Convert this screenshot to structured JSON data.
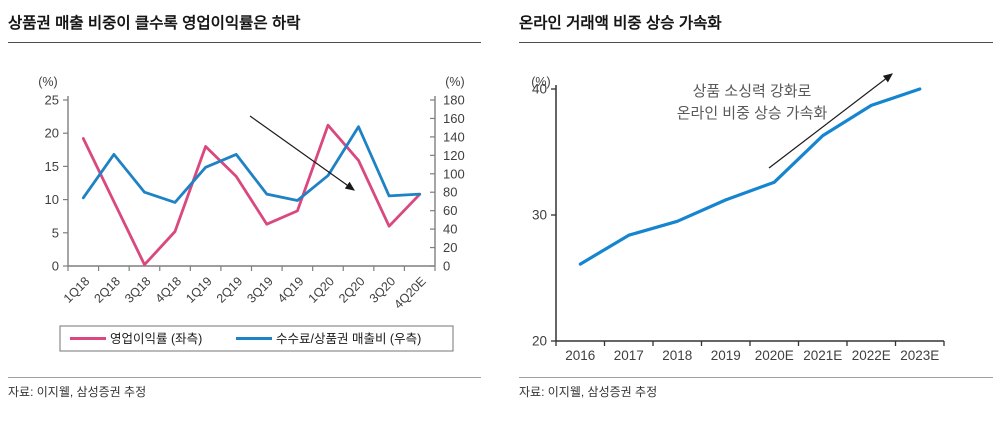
{
  "page": {
    "background": "#ffffff"
  },
  "chart_data": [
    {
      "type": "line",
      "title": "상품권 매출 비중이 클수록 영업이익률은 하락",
      "source": "자료: 이지웰, 삼성증권 추정",
      "ylabel_left": "(%)",
      "ylabel_right": "(%)",
      "categories": [
        "1Q18",
        "2Q18",
        "3Q18",
        "4Q18",
        "1Q19",
        "2Q19",
        "3Q19",
        "4Q19",
        "1Q20",
        "2Q20",
        "3Q20",
        "4Q20E"
      ],
      "series": [
        {
          "name": "영업이익률 (좌측)",
          "axis": "left",
          "color": "#d9487e",
          "values": [
            19.2,
            9.7,
            0.2,
            5.2,
            18.0,
            13.5,
            6.3,
            8.3,
            21.2,
            15.9,
            6.0,
            10.8
          ]
        },
        {
          "name": "수수료/상품권 매출비 (우측)",
          "axis": "right",
          "color": "#1e82c4",
          "values": [
            74,
            121,
            80,
            69,
            107,
            121,
            78,
            71,
            98,
            151,
            76,
            78
          ]
        }
      ],
      "ylim_left": [
        0,
        25
      ],
      "yticks_left": [
        0,
        5,
        10,
        15,
        20,
        25
      ],
      "ylim_right": [
        0,
        180
      ],
      "yticks_right": [
        0,
        20,
        40,
        60,
        80,
        100,
        120,
        140,
        160,
        180
      ],
      "grid": false,
      "legend_position": "bottom-box",
      "annotation_arrow": "diagonal-down-right"
    },
    {
      "type": "line",
      "title": "온라인 거래액 비중 상승 가속화",
      "source": "자료: 이지웰, 삼성증권 추정",
      "ylabel": "(%)",
      "categories": [
        "2016",
        "2017",
        "2018",
        "2019",
        "2020E",
        "2021E",
        "2022E",
        "2023E"
      ],
      "series": [
        {
          "name": "온라인 거래액 비중",
          "color": "#1585d0",
          "values": [
            26.1,
            28.4,
            29.5,
            31.2,
            32.6,
            36.3,
            38.7,
            40.0
          ]
        }
      ],
      "ylim": [
        20,
        40
      ],
      "yticks": [
        20,
        30,
        40
      ],
      "grid": false,
      "legend_position": "none",
      "annotation": {
        "line1": "상품 소싱력 강화로",
        "line2": "온라인 비중 상승 가속화"
      },
      "annotation_arrow": "diagonal-up-right"
    }
  ]
}
